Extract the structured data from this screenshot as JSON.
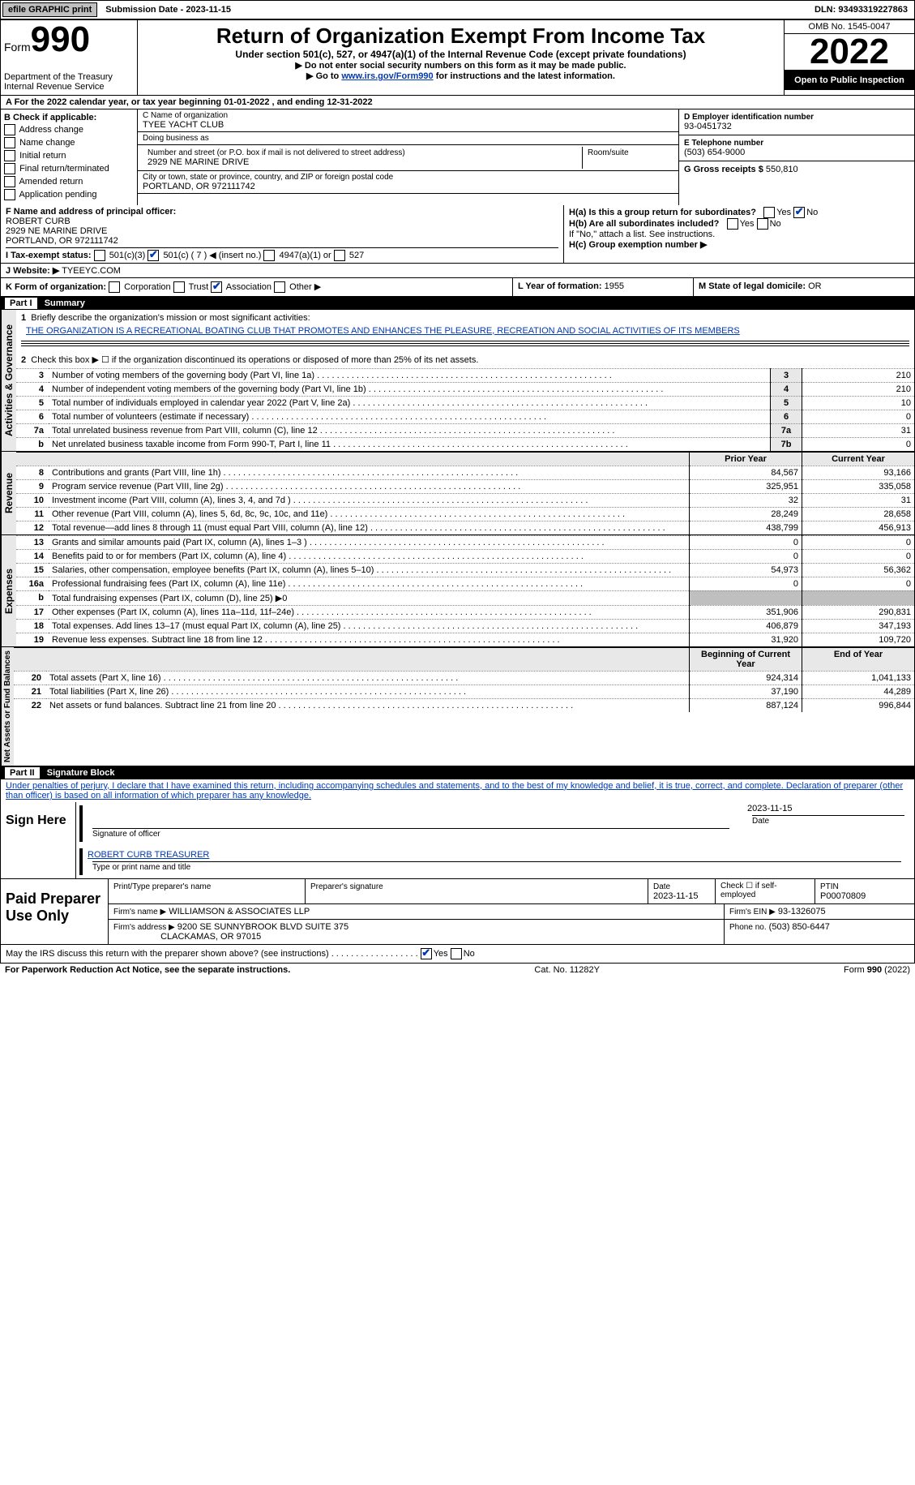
{
  "topbar": {
    "efile": "efile GRAPHIC print",
    "submission_label": "Submission Date - 2023-11-15",
    "dln": "DLN: 93493319227863"
  },
  "formhead": {
    "form_word": "Form",
    "form_no": "990",
    "dept": "Department of the Treasury\nInternal Revenue Service",
    "title": "Return of Organization Exempt From Income Tax",
    "subtitle": "Under section 501(c), 527, or 4947(a)(1) of the Internal Revenue Code (except private foundations)",
    "arrow1": "▶ Do not enter social security numbers on this form as it may be made public.",
    "arrow2_pre": "▶ Go to ",
    "arrow2_link": "www.irs.gov/Form990",
    "arrow2_post": " for instructions and the latest information.",
    "omb": "OMB No. 1545-0047",
    "year": "2022",
    "open": "Open to Public Inspection"
  },
  "period": "A For the 2022 calendar year, or tax year beginning 01-01-2022    , and ending 12-31-2022",
  "B": {
    "header": "B Check if applicable:",
    "items": [
      "Address change",
      "Name change",
      "Initial return",
      "Final return/terminated",
      "Amended return",
      "Application pending"
    ]
  },
  "C": {
    "name_label": "C Name of organization",
    "name": "TYEE YACHT CLUB",
    "dba_label": "Doing business as",
    "dba": "",
    "street_label": "Number and street (or P.O. box if mail is not delivered to street address)",
    "room_label": "Room/suite",
    "street": "2929 NE MARINE DRIVE",
    "city_label": "City or town, state or province, country, and ZIP or foreign postal code",
    "city": "PORTLAND, OR  972111742"
  },
  "D": {
    "label": "D Employer identification number",
    "value": "93-0451732"
  },
  "E": {
    "label": "E Telephone number",
    "value": "(503) 654-9000"
  },
  "G": {
    "label": "G Gross receipts $",
    "value": "550,810"
  },
  "F": {
    "label": "F  Name and address of principal officer:",
    "name": "ROBERT CURB",
    "addr1": "2929 NE MARINE DRIVE",
    "addr2": "PORTLAND, OR  972111742"
  },
  "H": {
    "a_label": "H(a)  Is this a group return for subordinates?",
    "a_yes": "Yes",
    "a_no": "No",
    "b_label": "H(b)  Are all subordinates included?",
    "b_yes": "Yes",
    "b_no": "No",
    "b_note": "If \"No,\" attach a list. See instructions.",
    "c_label": "H(c)  Group exemption number ▶"
  },
  "I": {
    "label": "I  Tax-exempt status:",
    "c3": "501(c)(3)",
    "c_other": "501(c) ( 7 ) ◀ (insert no.)",
    "a4947": "4947(a)(1) or",
    "s527": "527"
  },
  "J": {
    "label": "J  Website: ▶",
    "value": "TYEEYC.COM"
  },
  "K": {
    "label": "K Form of organization:",
    "opts": [
      "Corporation",
      "Trust",
      "Association",
      "Other ▶"
    ]
  },
  "L": {
    "label": "L Year of formation:",
    "value": "1955"
  },
  "M": {
    "label": "M State of legal domicile:",
    "value": "OR"
  },
  "partI": {
    "label": "Part I",
    "title": "Summary"
  },
  "summary": {
    "line1_label": "Briefly describe the organization's mission or most significant activities:",
    "mission": "THE ORGANIZATION IS A RECREATIONAL BOATING CLUB THAT PROMOTES AND ENHANCES THE PLEASURE, RECREATION AND SOCIAL ACTIVITIES OF ITS MEMBERS",
    "line2": "Check this box ▶ ☐  if the organization discontinued its operations or disposed of more than 25% of its net assets.",
    "sidebars": [
      "Activities & Governance",
      "Revenue",
      "Expenses",
      "Net Assets or Fund Balances"
    ],
    "ag_rows": [
      {
        "n": "3",
        "t": "Number of voting members of the governing body (Part VI, line 1a)",
        "k": "3",
        "v": "210"
      },
      {
        "n": "4",
        "t": "Number of independent voting members of the governing body (Part VI, line 1b)",
        "k": "4",
        "v": "210"
      },
      {
        "n": "5",
        "t": "Total number of individuals employed in calendar year 2022 (Part V, line 2a)",
        "k": "5",
        "v": "10"
      },
      {
        "n": "6",
        "t": "Total number of volunteers (estimate if necessary)",
        "k": "6",
        "v": "0"
      },
      {
        "n": "7a",
        "t": "Total unrelated business revenue from Part VIII, column (C), line 12",
        "k": "7a",
        "v": "31"
      },
      {
        "n": "b",
        "t": "Net unrelated business taxable income from Form 990-T, Part I, line 11",
        "k": "7b",
        "v": "0"
      }
    ],
    "header_prior": "Prior Year",
    "header_current": "Current Year",
    "rev_rows": [
      {
        "n": "8",
        "t": "Contributions and grants (Part VIII, line 1h)",
        "p": "84,567",
        "c": "93,166"
      },
      {
        "n": "9",
        "t": "Program service revenue (Part VIII, line 2g)",
        "p": "325,951",
        "c": "335,058"
      },
      {
        "n": "10",
        "t": "Investment income (Part VIII, column (A), lines 3, 4, and 7d )",
        "p": "32",
        "c": "31"
      },
      {
        "n": "11",
        "t": "Other revenue (Part VIII, column (A), lines 5, 6d, 8c, 9c, 10c, and 11e)",
        "p": "28,249",
        "c": "28,658"
      },
      {
        "n": "12",
        "t": "Total revenue—add lines 8 through 11 (must equal Part VIII, column (A), line 12)",
        "p": "438,799",
        "c": "456,913"
      }
    ],
    "exp_rows": [
      {
        "n": "13",
        "t": "Grants and similar amounts paid (Part IX, column (A), lines 1–3 )",
        "p": "0",
        "c": "0"
      },
      {
        "n": "14",
        "t": "Benefits paid to or for members (Part IX, column (A), line 4)",
        "p": "0",
        "c": "0"
      },
      {
        "n": "15",
        "t": "Salaries, other compensation, employee benefits (Part IX, column (A), lines 5–10)",
        "p": "54,973",
        "c": "56,362"
      },
      {
        "n": "16a",
        "t": "Professional fundraising fees (Part IX, column (A), line 11e)",
        "p": "0",
        "c": "0"
      },
      {
        "n": "b",
        "t": "Total fundraising expenses (Part IX, column (D), line 25) ▶0",
        "p": "",
        "c": "",
        "grey": true
      },
      {
        "n": "17",
        "t": "Other expenses (Part IX, column (A), lines 11a–11d, 11f–24e)",
        "p": "351,906",
        "c": "290,831"
      },
      {
        "n": "18",
        "t": "Total expenses. Add lines 13–17 (must equal Part IX, column (A), line 25)",
        "p": "406,879",
        "c": "347,193"
      },
      {
        "n": "19",
        "t": "Revenue less expenses. Subtract line 18 from line 12",
        "p": "31,920",
        "c": "109,720"
      }
    ],
    "header_boy": "Beginning of Current Year",
    "header_eoy": "End of Year",
    "na_rows": [
      {
        "n": "20",
        "t": "Total assets (Part X, line 16)",
        "p": "924,314",
        "c": "1,041,133"
      },
      {
        "n": "21",
        "t": "Total liabilities (Part X, line 26)",
        "p": "37,190",
        "c": "44,289"
      },
      {
        "n": "22",
        "t": "Net assets or fund balances. Subtract line 21 from line 20",
        "p": "887,124",
        "c": "996,844"
      }
    ]
  },
  "partII": {
    "label": "Part II",
    "title": "Signature Block"
  },
  "sig": {
    "penalty": "Under penalties of perjury, I declare that I have examined this return, including accompanying schedules and statements, and to the best of my knowledge and belief, it is true, correct, and complete. Declaration of preparer (other than officer) is based on all information of which preparer has any knowledge.",
    "sign_here": "Sign Here",
    "sig_officer": "Signature of officer",
    "sig_date": "2023-11-15",
    "date_lbl": "Date",
    "typed_name": "ROBERT CURB  TREASURER",
    "typed_lbl": "Type or print name and title",
    "paid_lbl": "Paid Preparer Use Only",
    "print_name_lbl": "Print/Type preparer's name",
    "prep_sig_lbl": "Preparer's signature",
    "date2_lbl": "Date",
    "date2": "2023-11-15",
    "check_self": "Check ☐ if self-employed",
    "ptin_lbl": "PTIN",
    "ptin": "P00070809",
    "firm_name_lbl": "Firm's name     ▶",
    "firm_name": "WILLIAMSON & ASSOCIATES LLP",
    "firm_ein_lbl": "Firm's EIN ▶",
    "firm_ein": "93-1326075",
    "firm_addr_lbl": "Firm's address ▶",
    "firm_addr1": "9200 SE SUNNYBROOK BLVD SUITE 375",
    "firm_addr2": "CLACKAMAS, OR  97015",
    "phone_lbl": "Phone no.",
    "phone": "(503) 850-6447",
    "discuss": "May the IRS discuss this return with the preparer shown above? (see instructions)",
    "yes": "Yes",
    "no": "No"
  },
  "footer": {
    "left": "For Paperwork Reduction Act Notice, see the separate instructions.",
    "mid": "Cat. No. 11282Y",
    "right": "Form 990 (2022)"
  }
}
